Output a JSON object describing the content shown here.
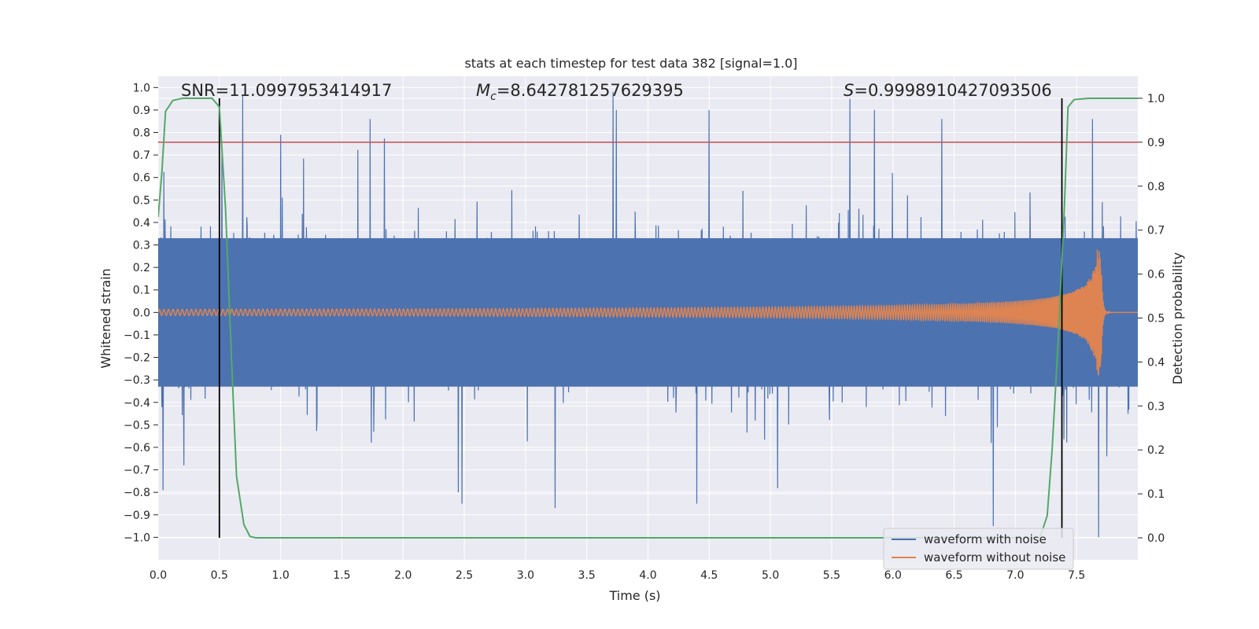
{
  "chart_data": {
    "type": "line",
    "title": "stats at each timestep for test data 382 [signal=1.0]",
    "xlabel": "Time (s)",
    "ylabel": "Whitened strain",
    "ylabel_right": "Detection probability",
    "xlim": [
      0.0,
      8.0
    ],
    "ylim": [
      -1.1,
      1.05
    ],
    "ylim_right": [
      -0.05,
      1.05
    ],
    "xticks": [
      0.0,
      0.5,
      1.0,
      1.5,
      2.0,
      2.5,
      3.0,
      3.5,
      4.0,
      4.5,
      5.0,
      5.5,
      6.0,
      6.5,
      7.0,
      7.5
    ],
    "xtick_labels": [
      "0.0",
      "0.5",
      "1.0",
      "1.5",
      "2.0",
      "2.5",
      "3.0",
      "3.5",
      "4.0",
      "4.5",
      "5.0",
      "5.5",
      "6.0",
      "6.5",
      "7.0",
      "7.5"
    ],
    "yticks": [
      1.0,
      0.9,
      0.8,
      0.7,
      0.6,
      0.5,
      0.4,
      0.3,
      0.2,
      0.1,
      0.0,
      -0.1,
      -0.2,
      -0.3,
      -0.4,
      -0.5,
      -0.6,
      -0.7,
      -0.8,
      -0.9,
      -1.0
    ],
    "ytick_labels": [
      "1.0",
      "0.9",
      "0.8",
      "0.7",
      "0.6",
      "0.5",
      "0.4",
      "0.3",
      "0.2",
      "0.1",
      "0.0",
      "−0.1",
      "−0.2",
      "−0.3",
      "−0.4",
      "−0.5",
      "−0.6",
      "−0.7",
      "−0.8",
      "−0.9",
      "−1.0"
    ],
    "yticks_right": [
      1.0,
      0.9,
      0.8,
      0.7,
      0.6,
      0.5,
      0.4,
      0.3,
      0.2,
      0.1,
      0.0
    ],
    "ytick_labels_right": [
      "1.0",
      "0.9",
      "0.8",
      "0.7",
      "0.6",
      "0.5",
      "0.4",
      "0.3",
      "0.2",
      "0.1",
      "0.0"
    ],
    "grid": true,
    "annotations": {
      "snr": "SNR=11.0997953414917",
      "mc_symbol": "M",
      "mc_subscript": "c",
      "mc_value": "=8.642781257629395",
      "s_symbol": "S",
      "s_value": "=0.9998910427093506"
    },
    "threshold": {
      "axis": "right",
      "value": 0.9,
      "color": "#c44e52"
    },
    "vertical_lines": [
      0.5,
      7.38
    ],
    "series": [
      {
        "name": "waveform with noise",
        "color": "#4c72b0",
        "description": "noisy whitened strain, dense fluctuation",
        "envelope_upper_approx": 0.4,
        "envelope_lower_approx": -0.4,
        "peaks": [
          [
            0.04,
            -0.79
          ],
          [
            0.52,
            0.73
          ],
          [
            1.0,
            0.79
          ],
          [
            1.73,
            0.86
          ],
          [
            1.76,
            -0.53
          ],
          [
            2.45,
            -0.8
          ],
          [
            2.48,
            -0.85
          ],
          [
            3.24,
            -0.87
          ],
          [
            3.74,
            0.9
          ],
          [
            4.5,
            0.9
          ],
          [
            4.4,
            -0.85
          ],
          [
            5.65,
            0.95
          ],
          [
            5.85,
            0.9
          ],
          [
            6.82,
            -0.95
          ],
          [
            7.68,
            -1.0
          ],
          [
            7.63,
            0.86
          ],
          [
            6.4,
            0.86
          ]
        ]
      },
      {
        "name": "waveform without noise",
        "color": "#dd8452",
        "description": "inspiral chirp, amplitude grows to merger near t=7.7 s",
        "chirp": {
          "t_start": 0.0,
          "t_merge": 7.7,
          "amp_start": 0.015,
          "amp_peak_up": 0.38,
          "amp_peak_down": -0.36,
          "cycles": 330
        }
      },
      {
        "name": "detection probability",
        "color": "#55a868",
        "axis": "right",
        "x": [
          0.0,
          0.03,
          0.06,
          0.12,
          0.2,
          0.3,
          0.44,
          0.5,
          0.55,
          0.6,
          0.64,
          0.7,
          0.75,
          0.8,
          1.0,
          2.0,
          3.0,
          4.0,
          5.0,
          6.0,
          7.0,
          7.2,
          7.26,
          7.3,
          7.35,
          7.4,
          7.43,
          7.48,
          7.6,
          8.0
        ],
        "values": [
          0.73,
          0.83,
          0.97,
          0.995,
          1.0,
          1.0,
          1.0,
          0.98,
          0.75,
          0.4,
          0.14,
          0.03,
          0.003,
          0.0,
          0.0,
          0.0,
          0.0,
          0.0,
          0.0,
          0.0,
          0.0,
          0.0,
          0.05,
          0.2,
          0.45,
          0.75,
          0.98,
          0.997,
          1.0,
          1.0
        ]
      }
    ],
    "legend": {
      "position": "lower-right",
      "entries": [
        {
          "label": "waveform with noise",
          "color": "#4c72b0"
        },
        {
          "label": "waveform without noise",
          "color": "#dd8452"
        }
      ]
    },
    "colors": {
      "plot_background": "#eaeaf2",
      "grid": "#ffffff",
      "vline": "#000000"
    }
  }
}
